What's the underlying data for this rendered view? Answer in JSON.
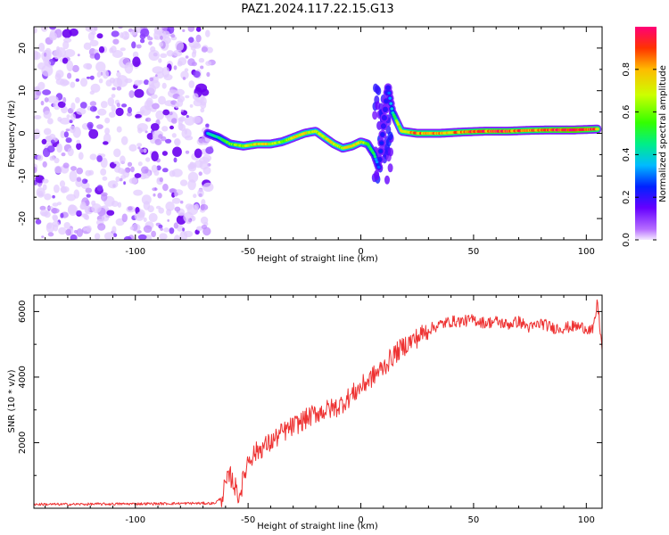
{
  "title": "PAZ1.2024.117.22.15.G13",
  "chart_data": [
    {
      "type": "heatmap",
      "title": "PAZ1.2024.117.22.15.G13",
      "xlabel": "Height of straight line (km)",
      "ylabel": "Frequency (Hz)",
      "xlim": [
        -145,
        107
      ],
      "ylim": [
        -25,
        25
      ],
      "xticks": [
        -100,
        -50,
        0,
        50,
        100
      ],
      "yticks": [
        -20,
        -10,
        0,
        10,
        20
      ],
      "colorbar": {
        "label": "Normalized spectral amplitude",
        "range": [
          0.0,
          1.0
        ],
        "ticks": [
          0.0,
          0.2,
          0.4,
          0.6,
          0.8
        ],
        "colormap": "rainbow (purple to red)"
      },
      "noise_region_x": [
        -145,
        -66
      ],
      "signal_track": {
        "x": [
          -68,
          -63,
          -58,
          -52,
          -46,
          -40,
          -35,
          -30,
          -25,
          -20,
          -16,
          -12,
          -8,
          -4,
          0,
          3,
          6,
          8,
          12,
          14,
          18,
          25,
          35,
          45,
          55,
          65,
          75,
          85,
          95,
          105
        ],
        "y": [
          0,
          -1,
          -2.5,
          -3,
          -2.5,
          -2.5,
          -2,
          -1,
          0,
          0.5,
          -1,
          -2.5,
          -3.5,
          -3,
          -2,
          -2.5,
          -5,
          -8,
          11,
          5,
          0.5,
          0,
          0,
          0.3,
          0.5,
          0.5,
          0.7,
          0.8,
          0.8,
          1
        ],
        "amplitude": [
          0.35,
          0.45,
          0.55,
          0.65,
          0.75,
          0.7,
          0.6,
          0.7,
          0.75,
          0.65,
          0.7,
          0.7,
          0.65,
          0.75,
          0.7,
          0.55,
          0.45,
          0.25,
          0.2,
          0.45,
          0.7,
          0.85,
          0.8,
          0.85,
          0.9,
          0.9,
          0.85,
          0.9,
          1.0,
          0.85
        ]
      }
    },
    {
      "type": "line",
      "xlabel": "Height of straight line (km)",
      "ylabel": "SNR (10 * v/v)",
      "xlim": [
        -145,
        107
      ],
      "ylim": [
        0,
        6500
      ],
      "xticks": [
        -100,
        -50,
        0,
        50,
        100
      ],
      "yticks": [
        2000,
        4000,
        6000
      ],
      "series": [
        {
          "color": "#ee3333",
          "x": [
            -145,
            -130,
            -110,
            -90,
            -75,
            -65,
            -62,
            -60,
            -58,
            -56,
            -54,
            -52,
            -50,
            -45,
            -40,
            -35,
            -30,
            -25,
            -20,
            -15,
            -10,
            -5,
            0,
            5,
            10,
            15,
            20,
            25,
            30,
            35,
            40,
            45,
            50,
            55,
            60,
            65,
            70,
            75,
            80,
            85,
            90,
            95,
            100,
            103,
            105,
            107
          ],
          "y": [
            120,
            120,
            130,
            140,
            150,
            150,
            300,
            700,
            1000,
            700,
            350,
            900,
            1500,
            1800,
            2000,
            2300,
            2500,
            2700,
            2900,
            3000,
            3100,
            3400,
            3700,
            4000,
            4300,
            4700,
            5000,
            5200,
            5450,
            5600,
            5700,
            5700,
            5750,
            5650,
            5700,
            5600,
            5700,
            5500,
            5650,
            5500,
            5500,
            5550,
            5500,
            5400,
            6300,
            4800
          ]
        }
      ]
    }
  ]
}
